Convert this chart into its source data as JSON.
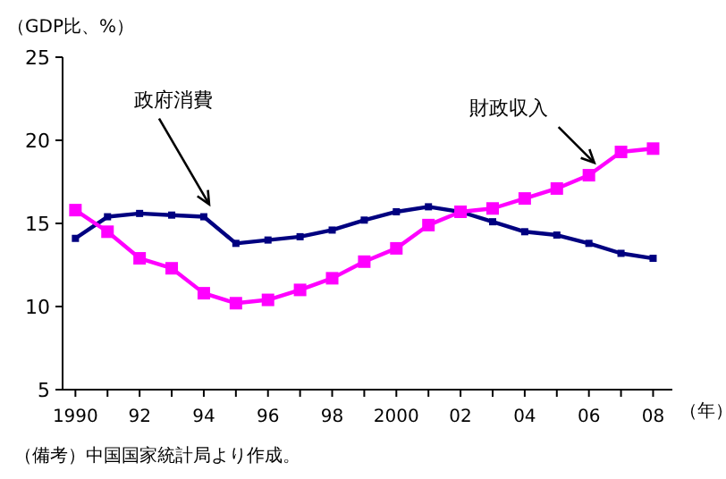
{
  "chart_data": {
    "type": "line",
    "ylabel": "（GDP比、%）",
    "xlabel": "（年）",
    "x": [
      1990,
      1991,
      1992,
      1993,
      1994,
      1995,
      1996,
      1997,
      1998,
      1999,
      2000,
      2001,
      2002,
      2003,
      2004,
      2005,
      2006,
      2007,
      2008
    ],
    "series": [
      {
        "name": "政府消費",
        "color": "#000080",
        "values": [
          14.1,
          15.4,
          15.6,
          15.5,
          15.4,
          13.8,
          14.0,
          14.2,
          14.6,
          15.2,
          15.7,
          16.0,
          15.7,
          15.1,
          14.5,
          14.3,
          13.8,
          13.2,
          12.9
        ]
      },
      {
        "name": "財政収入",
        "color": "#ff00ff",
        "values": [
          15.8,
          14.5,
          12.9,
          12.3,
          10.8,
          10.2,
          10.4,
          11.0,
          11.7,
          12.7,
          13.5,
          14.9,
          15.7,
          15.9,
          16.5,
          17.1,
          17.9,
          19.3,
          19.5
        ]
      }
    ],
    "xlim": [
      1989.6,
      2008.6
    ],
    "xticks": [
      {
        "value": 1990,
        "label": "1990"
      },
      {
        "value": 1991,
        "label": null
      },
      {
        "value": 1992,
        "label": "92"
      },
      {
        "value": 1993,
        "label": null
      },
      {
        "value": 1994,
        "label": "94"
      },
      {
        "value": 1995,
        "label": null
      },
      {
        "value": 1996,
        "label": "96"
      },
      {
        "value": 1997,
        "label": null
      },
      {
        "value": 1998,
        "label": "98"
      },
      {
        "value": 1999,
        "label": null
      },
      {
        "value": 2000,
        "label": "2000"
      },
      {
        "value": 2001,
        "label": null
      },
      {
        "value": 2002,
        "label": "02"
      },
      {
        "value": 2003,
        "label": null
      },
      {
        "value": 2004,
        "label": "04"
      },
      {
        "value": 2005,
        "label": null
      },
      {
        "value": 2006,
        "label": "06"
      },
      {
        "value": 2007,
        "label": null
      },
      {
        "value": 2008,
        "label": "08"
      }
    ],
    "ylim": [
      5,
      25
    ],
    "yticks": [
      5,
      10,
      15,
      20,
      25
    ],
    "marker": "square",
    "grid": false,
    "annotations": [
      "（備考）中国国家統計局より作成。"
    ]
  }
}
